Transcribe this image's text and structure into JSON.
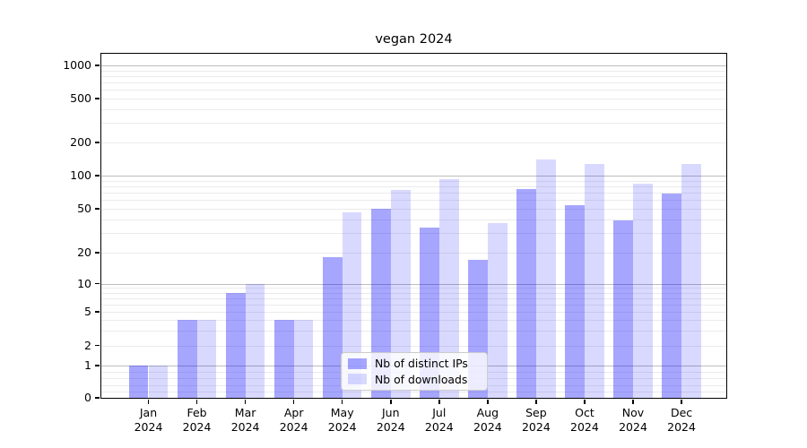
{
  "chart_data": {
    "type": "bar",
    "title": "vegan 2024",
    "categories": [
      "Jan 2024",
      "Feb 2024",
      "Mar 2024",
      "Apr 2024",
      "May 2024",
      "Jun 2024",
      "Jul 2024",
      "Aug 2024",
      "Sep 2024",
      "Oct 2024",
      "Nov 2024",
      "Dec 2024"
    ],
    "series": [
      {
        "name": "Nb of distinct IPs",
        "color": "#0000ff59",
        "values": [
          1,
          4,
          8,
          4,
          18,
          50,
          34,
          17,
          75,
          54,
          39,
          69
        ]
      },
      {
        "name": "Nb of downloads",
        "color": "#0000ff26",
        "values": [
          1,
          4,
          10,
          4,
          46,
          74,
          93,
          37,
          140,
          128,
          85,
          127
        ]
      }
    ],
    "xlabel": "",
    "ylabel": "",
    "x_tick_line1": [
      "Jan",
      "Feb",
      "Mar",
      "Apr",
      "May",
      "Jun",
      "Jul",
      "Aug",
      "Sep",
      "Oct",
      "Nov",
      "Dec"
    ],
    "x_tick_line2": "2024",
    "y_axis": {
      "scale": "symlog",
      "tick_values": [
        1000,
        500,
        200,
        100,
        50,
        20,
        10,
        5,
        2,
        1,
        0
      ],
      "tick_labels": [
        "1000",
        "500",
        "200",
        "100",
        "50",
        "20",
        "10",
        "5",
        "2",
        "1",
        "0"
      ],
      "range": [
        0,
        1000
      ],
      "grid": "on"
    },
    "legend": {
      "position": "lower center",
      "entries": [
        "Nb of distinct IPs",
        "Nb of downloads"
      ]
    },
    "background_color": "#ffffff",
    "major_grid_color": "#bdbdbd",
    "minor_grid_color": "#e9e9e9"
  }
}
